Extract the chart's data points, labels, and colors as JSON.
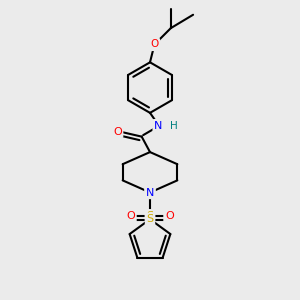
{
  "bg_color": "#ebebeb",
  "bond_color": "#000000",
  "colors": {
    "O": "#ff0000",
    "N": "#0000ff",
    "S_thio": "#ccaa00",
    "S_sulfonyl": "#ccaa00",
    "H": "#008080",
    "C": "#000000"
  },
  "lw": 1.5,
  "lw_aromatic": 1.5,
  "double_sep": 0.018
}
